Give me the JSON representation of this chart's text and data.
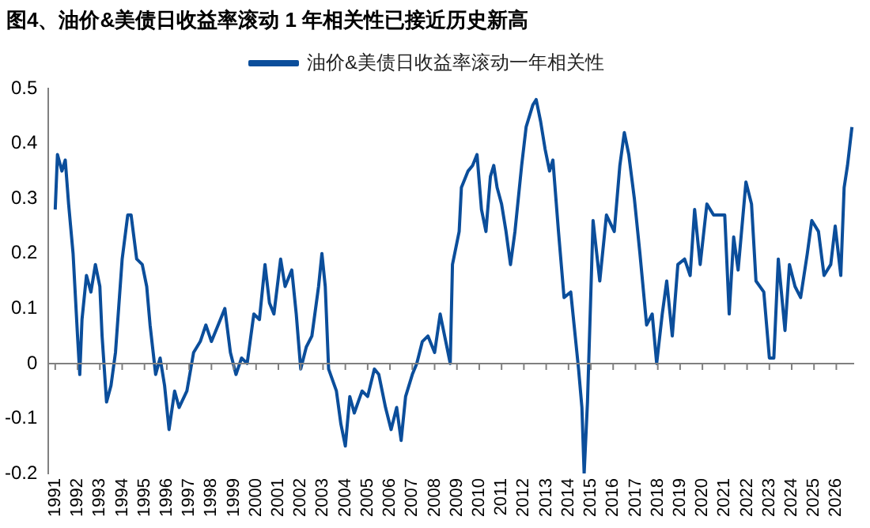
{
  "chart_data": {
    "type": "line",
    "title": "图4、油价&美债日收益率滚动 1 年相关性已接近历史新高",
    "series": [
      {
        "name": "油价&美债日收益率滚动一年相关性",
        "color": "#0b4e9b",
        "x": [
          1991.0,
          1991.1,
          1991.3,
          1991.45,
          1991.6,
          1991.8,
          1992.0,
          1992.1,
          1992.2,
          1992.4,
          1992.6,
          1992.8,
          1993.0,
          1993.1,
          1993.3,
          1993.5,
          1993.7,
          1994.0,
          1994.25,
          1994.4,
          1994.65,
          1994.9,
          1995.1,
          1995.25,
          1995.5,
          1995.7,
          1995.9,
          1996.1,
          1996.35,
          1996.55,
          1996.9,
          1997.2,
          1997.5,
          1997.75,
          1998.0,
          1998.3,
          1998.6,
          1998.85,
          1999.1,
          1999.35,
          1999.6,
          1999.9,
          2000.15,
          2000.4,
          2000.6,
          2000.8,
          2001.1,
          2001.3,
          2001.6,
          2001.8,
          2002.0,
          2002.25,
          2002.5,
          2002.8,
          2002.95,
          2003.1,
          2003.25,
          2003.6,
          2003.8,
          2004.0,
          2004.2,
          2004.4,
          2004.75,
          2005.0,
          2005.3,
          2005.5,
          2005.8,
          2006.05,
          2006.3,
          2006.5,
          2006.7,
          2007.0,
          2007.2,
          2007.45,
          2007.7,
          2008.0,
          2008.25,
          2008.5,
          2008.7,
          2008.8,
          2009.1,
          2009.2,
          2009.5,
          2009.7,
          2009.9,
          2010.1,
          2010.3,
          2010.5,
          2010.65,
          2010.8,
          2011.0,
          2011.2,
          2011.4,
          2011.6,
          2011.9,
          2012.1,
          2012.4,
          2012.55,
          2012.75,
          2012.95,
          2013.15,
          2013.3,
          2013.55,
          2013.8,
          2014.1,
          2014.25,
          2014.45,
          2014.6,
          2014.7,
          2014.85,
          2015.1,
          2015.4,
          2015.7,
          2016.05,
          2016.3,
          2016.5,
          2016.7,
          2016.95,
          2017.2,
          2017.5,
          2017.75,
          2017.95,
          2018.2,
          2018.4,
          2018.65,
          2018.9,
          2019.2,
          2019.45,
          2019.65,
          2019.9,
          2020.2,
          2020.5,
          2020.75,
          2021.0,
          2021.2,
          2021.4,
          2021.6,
          2021.95,
          2022.2,
          2022.4,
          2022.75,
          2023.0,
          2023.2,
          2023.4,
          2023.7,
          2023.9,
          2024.15,
          2024.4,
          2024.7,
          2024.9,
          2025.2,
          2025.45,
          2025.75,
          2025.95,
          2026.2,
          2026.35,
          2026.5,
          2026.7
        ],
        "values": [
          0.28,
          0.38,
          0.35,
          0.37,
          0.29,
          0.2,
          0.05,
          -0.02,
          0.08,
          0.16,
          0.13,
          0.18,
          0.14,
          0.05,
          -0.07,
          -0.04,
          0.02,
          0.19,
          0.27,
          0.27,
          0.19,
          0.18,
          0.14,
          0.07,
          -0.02,
          0.01,
          -0.04,
          -0.12,
          -0.05,
          -0.08,
          -0.05,
          0.02,
          0.04,
          0.07,
          0.04,
          0.07,
          0.1,
          0.02,
          -0.02,
          0.01,
          0.0,
          0.09,
          0.08,
          0.18,
          0.11,
          0.09,
          0.19,
          0.14,
          0.17,
          0.09,
          -0.01,
          0.03,
          0.05,
          0.14,
          0.2,
          0.14,
          -0.01,
          -0.05,
          -0.11,
          -0.15,
          -0.06,
          -0.09,
          -0.05,
          -0.06,
          -0.01,
          -0.02,
          -0.08,
          -0.12,
          -0.08,
          -0.14,
          -0.06,
          -0.02,
          0.0,
          0.04,
          0.05,
          0.02,
          0.09,
          0.04,
          0.0,
          0.18,
          0.24,
          0.32,
          0.35,
          0.36,
          0.38,
          0.28,
          0.24,
          0.34,
          0.36,
          0.32,
          0.29,
          0.24,
          0.18,
          0.24,
          0.36,
          0.43,
          0.47,
          0.48,
          0.44,
          0.39,
          0.35,
          0.37,
          0.24,
          0.12,
          0.13,
          0.07,
          -0.01,
          -0.08,
          -0.2,
          -0.07,
          0.26,
          0.15,
          0.27,
          0.24,
          0.36,
          0.42,
          0.38,
          0.3,
          0.2,
          0.07,
          0.09,
          0.0,
          0.09,
          0.15,
          0.05,
          0.18,
          0.19,
          0.16,
          0.28,
          0.18,
          0.29,
          0.27,
          0.27,
          0.27,
          0.09,
          0.23,
          0.17,
          0.33,
          0.29,
          0.15,
          0.13,
          0.01,
          0.01,
          0.19,
          0.06,
          0.18,
          0.14,
          0.12,
          0.2,
          0.26,
          0.24,
          0.16,
          0.18,
          0.25,
          0.16,
          0.32,
          0.36,
          0.43
        ]
      }
    ],
    "xlim": [
      1990.7,
      2026.8
    ],
    "xticks": [
      1991,
      1992,
      1993,
      1994,
      1995,
      1996,
      1997,
      1998,
      1999,
      2000,
      2001,
      2002,
      2003,
      2004,
      2005,
      2006,
      2007,
      2008,
      2009,
      2010,
      2011,
      2012,
      2013,
      2014,
      2015,
      2016,
      2017,
      2018,
      2019,
      2020,
      2021,
      2022,
      2023,
      2024,
      2025,
      2026
    ],
    "ylim": [
      -0.2,
      0.5
    ],
    "yticks": [
      -0.2,
      -0.1,
      0,
      0.1,
      0.2,
      0.3,
      0.4,
      0.5
    ],
    "ref_lines": [
      {
        "axis": "y",
        "value": 0,
        "color": "#808080"
      }
    ],
    "legend": "top",
    "grid": false,
    "marker": "none",
    "line_style": "solid"
  }
}
